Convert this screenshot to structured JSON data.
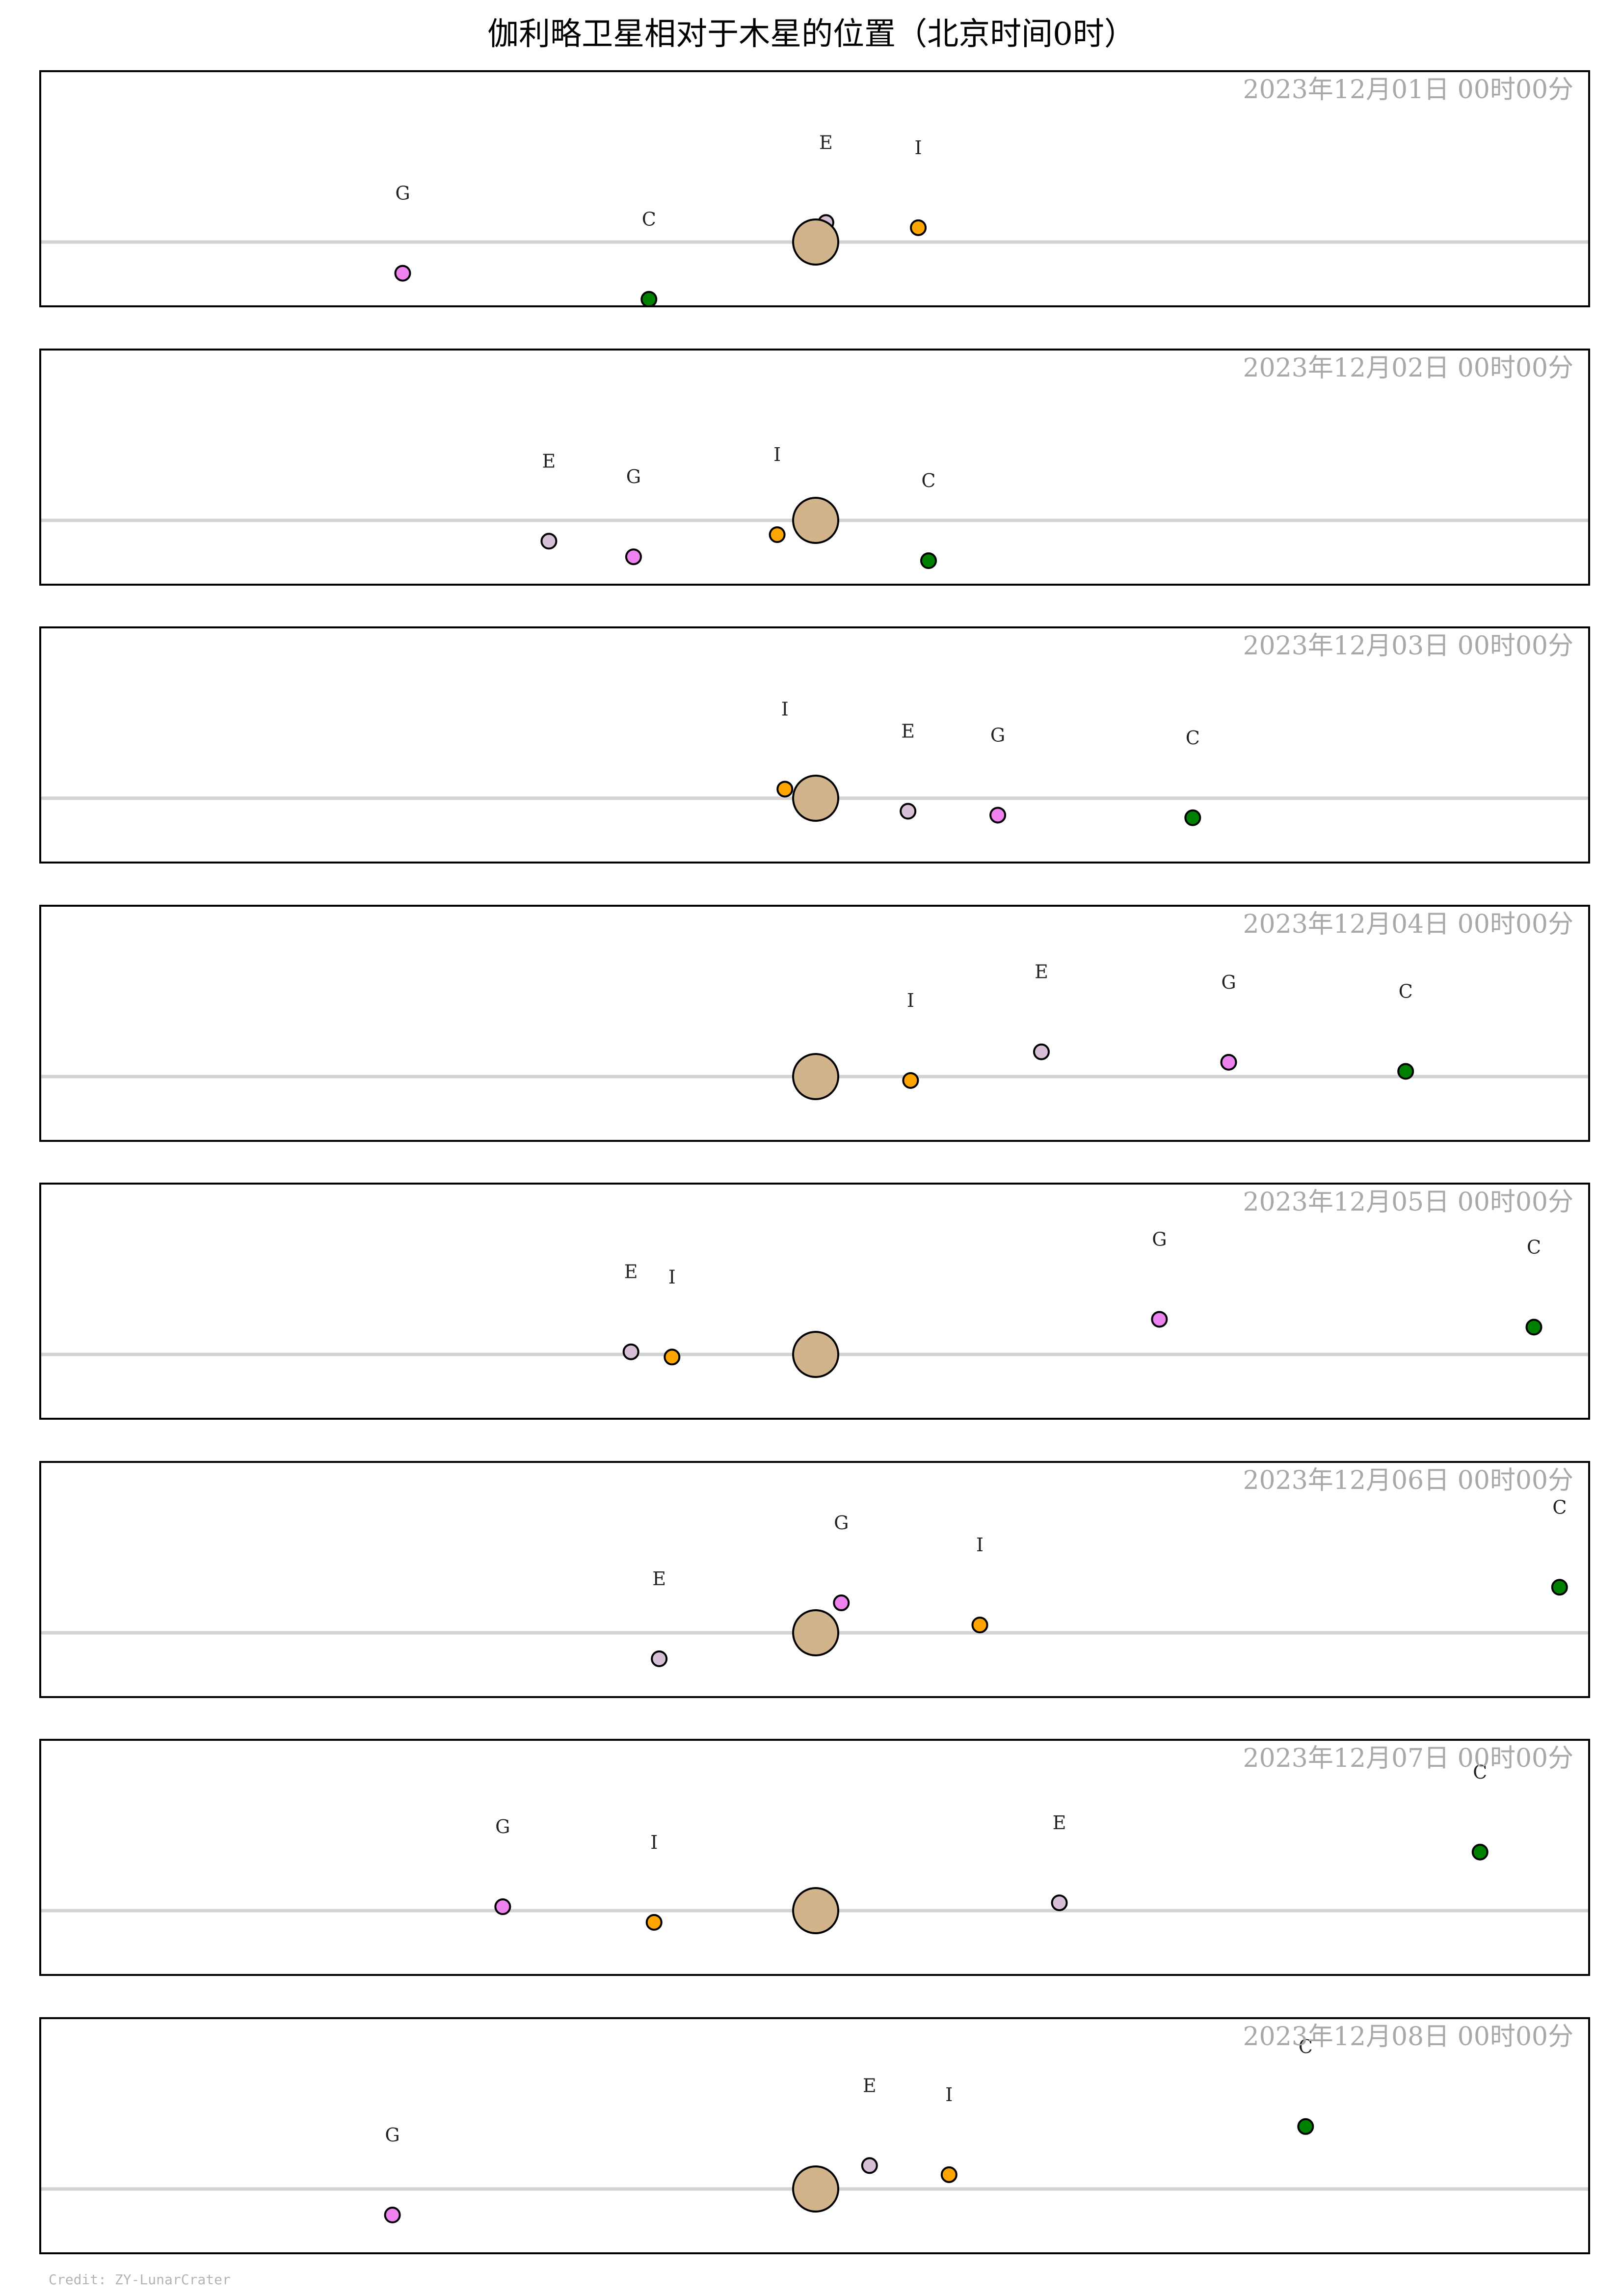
{
  "title": "伽利略卫星相对于木星的位置（北京时间0时）",
  "credit": "Credit: ZY-LunarCrater",
  "colors": {
    "background": "#ffffff",
    "frame": "#000000",
    "equator_line": "#d3d3d3",
    "timestamp": "#a8a8a8",
    "jupiter": "#d2b48c",
    "I": "#ffa500",
    "E": "#d8bfd8",
    "G": "#ee82ee",
    "C": "#008000"
  },
  "chart_data": {
    "type": "scatter",
    "title": "伽利略卫星相对于木星的位置（北京时间0时）",
    "xlabel": "",
    "ylabel": "",
    "xlim": [
      -30,
      30
    ],
    "ylim": [
      -2.7,
      6.5
    ],
    "grid": false,
    "legend": "none",
    "center_body": "Jupiter",
    "panels": [
      {
        "timestamp": "2023年12月01日 00时00分",
        "moons": [
          {
            "name": "E",
            "x": 0.4,
            "y": 0.75
          },
          {
            "name": "I",
            "x": 4.0,
            "y": 0.55
          },
          {
            "name": "G",
            "x": -16.1,
            "y": -1.2
          },
          {
            "name": "C",
            "x": -6.5,
            "y": -2.2
          }
        ]
      },
      {
        "timestamp": "2023年12月02日 00时00分",
        "moons": [
          {
            "name": "E",
            "x": -10.4,
            "y": -0.8
          },
          {
            "name": "G",
            "x": -7.1,
            "y": -1.4
          },
          {
            "name": "I",
            "x": -1.5,
            "y": -0.55
          },
          {
            "name": "C",
            "x": 4.4,
            "y": -1.55
          }
        ]
      },
      {
        "timestamp": "2023年12月03日 00时00分",
        "moons": [
          {
            "name": "I",
            "x": -1.2,
            "y": 0.35
          },
          {
            "name": "E",
            "x": 3.6,
            "y": -0.5
          },
          {
            "name": "G",
            "x": 7.1,
            "y": -0.65
          },
          {
            "name": "C",
            "x": 14.7,
            "y": -0.75
          }
        ]
      },
      {
        "timestamp": "2023年12月04日 00时00分",
        "moons": [
          {
            "name": "I",
            "x": 3.7,
            "y": -0.15
          },
          {
            "name": "E",
            "x": 8.8,
            "y": 0.95
          },
          {
            "name": "G",
            "x": 16.1,
            "y": 0.55
          },
          {
            "name": "C",
            "x": 23.0,
            "y": 0.2
          }
        ]
      },
      {
        "timestamp": "2023年12月05日 00时00分",
        "moons": [
          {
            "name": "E",
            "x": -7.2,
            "y": 0.1
          },
          {
            "name": "I",
            "x": -5.6,
            "y": -0.1
          },
          {
            "name": "G",
            "x": 13.4,
            "y": 1.35
          },
          {
            "name": "C",
            "x": 28.0,
            "y": 1.05
          }
        ]
      },
      {
        "timestamp": "2023年12月06日 00时00分",
        "moons": [
          {
            "name": "E",
            "x": -6.1,
            "y": -1.0
          },
          {
            "name": "G",
            "x": 1.0,
            "y": 1.15
          },
          {
            "name": "I",
            "x": 6.4,
            "y": 0.3
          },
          {
            "name": "C",
            "x": 29.0,
            "y": 1.75
          }
        ]
      },
      {
        "timestamp": "2023年12月07日 00时00分",
        "moons": [
          {
            "name": "G",
            "x": -12.2,
            "y": 0.15
          },
          {
            "name": "I",
            "x": -6.3,
            "y": -0.45
          },
          {
            "name": "E",
            "x": 9.5,
            "y": 0.3
          },
          {
            "name": "C",
            "x": 25.9,
            "y": 2.25
          }
        ]
      },
      {
        "timestamp": "2023年12月08日 00时00分",
        "moons": [
          {
            "name": "G",
            "x": -16.5,
            "y": -1.0
          },
          {
            "name": "E",
            "x": 2.1,
            "y": 0.9
          },
          {
            "name": "I",
            "x": 5.2,
            "y": 0.55
          },
          {
            "name": "C",
            "x": 19.1,
            "y": 2.4
          }
        ]
      }
    ]
  }
}
